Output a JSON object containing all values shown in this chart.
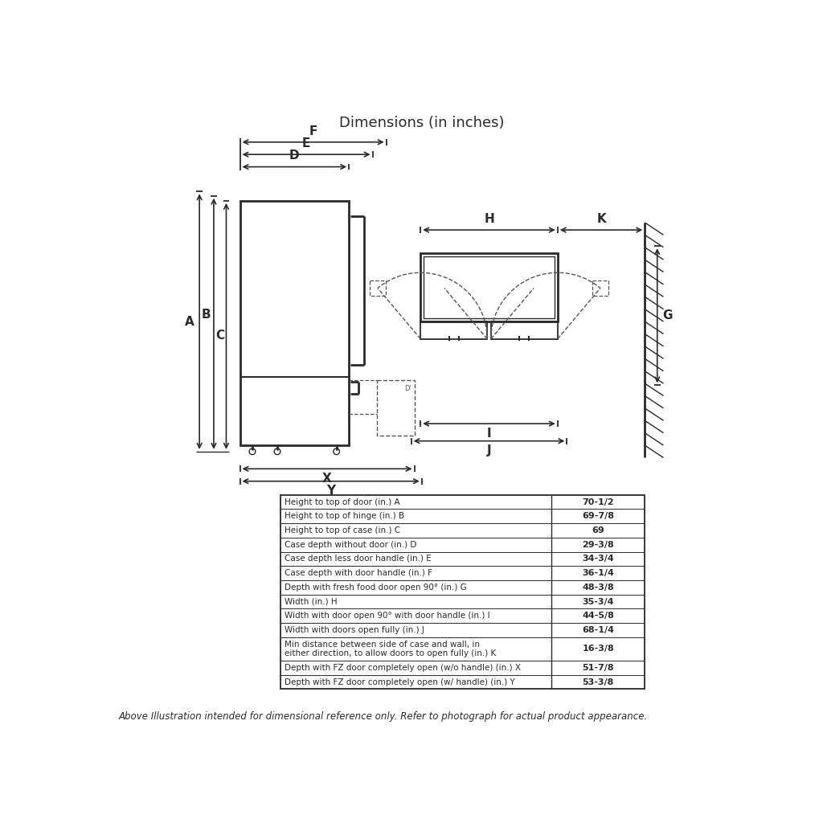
{
  "title": "Dimensions (in inches)",
  "footer": "Above Illustration intended for dimensional reference only. Refer to photograph for actual product appearance.",
  "table_rows": [
    [
      "Height to top of door (in.) A",
      "70-1/2"
    ],
    [
      "Height to top of hinge (in.) B",
      "69-7/8"
    ],
    [
      "Height to top of case (in.) C",
      "69"
    ],
    [
      "Case depth without door (in.) D",
      "29-3/8"
    ],
    [
      "Case depth less door handle (in.) E",
      "34-3/4"
    ],
    [
      "Case depth with door handle (in.) F",
      "36-1/4"
    ],
    [
      "Depth with fresh food door open 90° (in.) G",
      "48-3/8"
    ],
    [
      "Width (in.) H",
      "35-3/4"
    ],
    [
      "Width with door open 90° with door handle (in.) I",
      "44-5/8"
    ],
    [
      "Width with doors open fully (in.) J",
      "68-1/4"
    ],
    [
      "Min distance between side of case and wall, in\neither direction, to allow doors to open fully (in.) K",
      "16-3/8"
    ],
    [
      "Depth with FZ door completely open (w/o handle) (in.) X",
      "51-7/8"
    ],
    [
      "Depth with FZ door completely open (w/ handle) (in.) Y",
      "53-3/8"
    ]
  ],
  "bg_color": "#ffffff",
  "line_color": "#2a2a2a",
  "text_color": "#2a2a2a"
}
